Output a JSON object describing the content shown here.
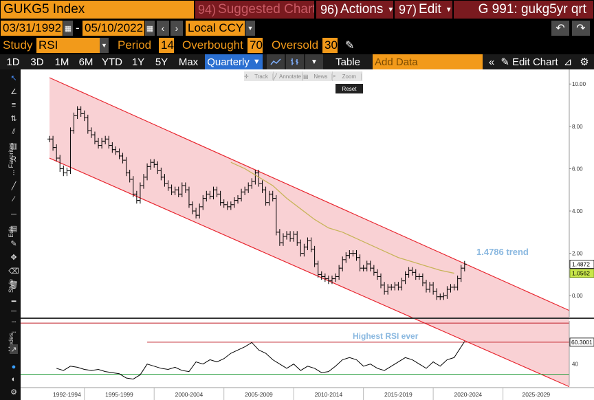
{
  "header": {
    "ticker": "GUKG5 Index",
    "suggested": {
      "num": "94)",
      "label": "Suggested Charts"
    },
    "actions": {
      "num": "96)",
      "label": "Actions"
    },
    "edit": {
      "num": "97)",
      "label": "Edit"
    },
    "title": "G 991: gukg5yr qrt"
  },
  "range": {
    "start": "03/31/1992",
    "sep": "-",
    "end": "05/10/2022",
    "currency": "Local CCY"
  },
  "study": {
    "label": "Study",
    "value": "RSI",
    "period_label": "Period",
    "period": "14",
    "overbought_label": "Overbought",
    "overbought": "70",
    "oversold_label": "Oversold",
    "oversold": "30"
  },
  "toolbar": {
    "periods": [
      "1D",
      "3D",
      "1M",
      "6M",
      "YTD",
      "1Y",
      "5Y",
      "Max"
    ],
    "frequency": "Quarterly",
    "table": "Table",
    "add_data_placeholder": "Add Data",
    "edit_chart": "Edit Chart"
  },
  "floating_toolbar": {
    "items": [
      "Track",
      "Annotate",
      "News",
      "Zoom"
    ],
    "reset": "Reset"
  },
  "left_toolbar": {
    "favorites": "Favorites",
    "edit": "Edit",
    "style": "Style",
    "modes": "Modes"
  },
  "colors": {
    "orange": "#f29a1a",
    "maroon": "#7a1a1f",
    "blue": "#2a6fd1",
    "channel": "#e8262f",
    "channel_fill": "#f7c6c9",
    "ma": "#c8b45a"
  },
  "chart_data": {
    "type": "line",
    "x_labels": [
      "1992-1994",
      "1995-1999",
      "2000-2004",
      "2005-2009",
      "2010-2014",
      "2015-2019",
      "2020-2024",
      "2025-2029"
    ],
    "price_axis": {
      "ticks": [
        "10.00",
        "8.00",
        "6.00",
        "4.00",
        "2.00",
        "0.00"
      ],
      "ylim": [
        -1.0,
        10.3
      ]
    },
    "price_series": [
      [
        1992.5,
        7.4
      ],
      [
        1992.75,
        7.0
      ],
      [
        1993.0,
        6.5
      ],
      [
        1993.25,
        6.0
      ],
      [
        1993.5,
        5.8
      ],
      [
        1993.75,
        5.9
      ],
      [
        1994.0,
        7.8
      ],
      [
        1994.25,
        8.5
      ],
      [
        1994.5,
        8.8
      ],
      [
        1994.75,
        8.6
      ],
      [
        1995.0,
        8.4
      ],
      [
        1995.25,
        7.8
      ],
      [
        1995.5,
        7.6
      ],
      [
        1995.75,
        7.3
      ],
      [
        1996.0,
        7.1
      ],
      [
        1996.25,
        7.3
      ],
      [
        1996.5,
        7.4
      ],
      [
        1996.75,
        7.1
      ],
      [
        1997.0,
        6.9
      ],
      [
        1997.25,
        6.8
      ],
      [
        1997.5,
        6.6
      ],
      [
        1997.75,
        6.4
      ],
      [
        1998.0,
        5.8
      ],
      [
        1998.25,
        5.5
      ],
      [
        1998.5,
        4.8
      ],
      [
        1998.75,
        4.5
      ],
      [
        1999.0,
        5.2
      ],
      [
        1999.25,
        5.6
      ],
      [
        1999.5,
        6.1
      ],
      [
        1999.75,
        6.3
      ],
      [
        2000.0,
        6.2
      ],
      [
        2000.25,
        5.9
      ],
      [
        2000.5,
        5.6
      ],
      [
        2000.75,
        5.3
      ],
      [
        2001.0,
        5.1
      ],
      [
        2001.25,
        4.9
      ],
      [
        2001.5,
        5.0
      ],
      [
        2001.75,
        4.8
      ],
      [
        2002.0,
        5.2
      ],
      [
        2002.25,
        5.0
      ],
      [
        2002.5,
        4.3
      ],
      [
        2002.75,
        4.0
      ],
      [
        2003.0,
        3.8
      ],
      [
        2003.25,
        4.2
      ],
      [
        2003.5,
        4.6
      ],
      [
        2003.75,
        4.8
      ],
      [
        2004.0,
        4.7
      ],
      [
        2004.25,
        5.0
      ],
      [
        2004.5,
        4.8
      ],
      [
        2004.75,
        4.4
      ],
      [
        2005.0,
        4.3
      ],
      [
        2005.25,
        4.2
      ],
      [
        2005.5,
        4.3
      ],
      [
        2005.75,
        4.5
      ],
      [
        2006.0,
        4.6
      ],
      [
        2006.25,
        4.9
      ],
      [
        2006.5,
        5.0
      ],
      [
        2006.75,
        5.2
      ],
      [
        2007.0,
        5.4
      ],
      [
        2007.25,
        5.8
      ],
      [
        2007.5,
        5.3
      ],
      [
        2007.75,
        5.0
      ],
      [
        2008.0,
        4.4
      ],
      [
        2008.25,
        4.8
      ],
      [
        2008.5,
        4.6
      ],
      [
        2008.75,
        3.0
      ],
      [
        2009.0,
        2.5
      ],
      [
        2009.25,
        2.8
      ],
      [
        2009.5,
        2.9
      ],
      [
        2009.75,
        2.7
      ],
      [
        2010.0,
        2.9
      ],
      [
        2010.25,
        2.5
      ],
      [
        2010.5,
        2.0
      ],
      [
        2010.75,
        2.3
      ],
      [
        2011.0,
        2.6
      ],
      [
        2011.25,
        2.2
      ],
      [
        2011.5,
        1.5
      ],
      [
        2011.75,
        1.0
      ],
      [
        2012.0,
        0.9
      ],
      [
        2012.25,
        0.8
      ],
      [
        2012.5,
        0.7
      ],
      [
        2012.75,
        0.8
      ],
      [
        2013.0,
        0.9
      ],
      [
        2013.25,
        1.3
      ],
      [
        2013.5,
        1.7
      ],
      [
        2013.75,
        1.9
      ],
      [
        2014.0,
        2.0
      ],
      [
        2014.25,
        2.0
      ],
      [
        2014.5,
        1.8
      ],
      [
        2014.75,
        1.3
      ],
      [
        2015.0,
        1.3
      ],
      [
        2015.25,
        1.5
      ],
      [
        2015.5,
        1.3
      ],
      [
        2015.75,
        1.1
      ],
      [
        2016.0,
        0.9
      ],
      [
        2016.25,
        0.5
      ],
      [
        2016.5,
        0.2
      ],
      [
        2016.75,
        0.4
      ],
      [
        2017.0,
        0.4
      ],
      [
        2017.25,
        0.5
      ],
      [
        2017.5,
        0.4
      ],
      [
        2017.75,
        0.7
      ],
      [
        2018.0,
        1.0
      ],
      [
        2018.25,
        1.2
      ],
      [
        2018.5,
        1.1
      ],
      [
        2018.75,
        0.9
      ],
      [
        2019.0,
        0.9
      ],
      [
        2019.25,
        0.6
      ],
      [
        2019.5,
        0.3
      ],
      [
        2019.75,
        0.5
      ],
      [
        2020.0,
        0.2
      ],
      [
        2020.25,
        -0.05
      ],
      [
        2020.5,
        -0.05
      ],
      [
        2020.75,
        0.0
      ],
      [
        2021.0,
        0.3
      ],
      [
        2021.25,
        0.4
      ],
      [
        2021.5,
        0.4
      ],
      [
        2021.75,
        0.8
      ],
      [
        2022.0,
        1.3
      ],
      [
        2022.25,
        1.49
      ]
    ],
    "moving_average": [
      [
        2005.5,
        6.3
      ],
      [
        2006.5,
        6.0
      ],
      [
        2007.5,
        5.6
      ],
      [
        2008.5,
        5.2
      ],
      [
        2009.5,
        4.6
      ],
      [
        2010.5,
        4.1
      ],
      [
        2011.5,
        3.6
      ],
      [
        2012.5,
        3.2
      ],
      [
        2013.5,
        3.0
      ],
      [
        2014.5,
        2.7
      ],
      [
        2015.5,
        2.4
      ],
      [
        2016.5,
        2.1
      ],
      [
        2017.5,
        1.8
      ],
      [
        2018.5,
        1.6
      ],
      [
        2019.5,
        1.4
      ],
      [
        2020.5,
        1.2
      ],
      [
        2021.5,
        1.06
      ]
    ],
    "channel": {
      "upper": [
        [
          1992.5,
          10.3
        ],
        [
          2029.75,
          -0.7
        ]
      ],
      "lower": [
        [
          1992.5,
          6.5
        ],
        [
          2029.75,
          -4.3
        ]
      ]
    },
    "last_price_tag": "1.4872",
    "ma_tag": "1.0562",
    "trend_annotation": "1.4786 trend",
    "rsi_axis": {
      "ticks": [
        "40"
      ],
      "ylim": [
        20,
        80
      ]
    },
    "rsi_series": [
      [
        1993.0,
        36
      ],
      [
        1993.5,
        34
      ],
      [
        1994.0,
        38
      ],
      [
        1994.5,
        37
      ],
      [
        1995.0,
        35
      ],
      [
        1995.5,
        34
      ],
      [
        1996.0,
        35
      ],
      [
        1996.5,
        33
      ],
      [
        1997.0,
        32
      ],
      [
        1997.5,
        31
      ],
      [
        1998.0,
        27
      ],
      [
        1998.5,
        26
      ],
      [
        1999.0,
        30
      ],
      [
        1999.5,
        40
      ],
      [
        2000.0,
        38
      ],
      [
        2000.5,
        36
      ],
      [
        2001.0,
        35
      ],
      [
        2001.5,
        37
      ],
      [
        2002.0,
        34
      ],
      [
        2002.5,
        33
      ],
      [
        2003.0,
        42
      ],
      [
        2003.5,
        40
      ],
      [
        2004.0,
        44
      ],
      [
        2004.5,
        42
      ],
      [
        2005.0,
        45
      ],
      [
        2005.5,
        50
      ],
      [
        2006.0,
        53
      ],
      [
        2006.5,
        56
      ],
      [
        2007.0,
        60
      ],
      [
        2007.5,
        53
      ],
      [
        2008.0,
        50
      ],
      [
        2008.5,
        44
      ],
      [
        2009.0,
        40
      ],
      [
        2009.5,
        36
      ],
      [
        2010.0,
        40
      ],
      [
        2010.5,
        34
      ],
      [
        2011.0,
        38
      ],
      [
        2011.5,
        36
      ],
      [
        2012.0,
        32
      ],
      [
        2012.5,
        33
      ],
      [
        2013.0,
        38
      ],
      [
        2013.5,
        44
      ],
      [
        2014.0,
        46
      ],
      [
        2014.5,
        44
      ],
      [
        2015.0,
        38
      ],
      [
        2015.5,
        40
      ],
      [
        2016.0,
        36
      ],
      [
        2016.5,
        34
      ],
      [
        2017.0,
        38
      ],
      [
        2017.5,
        42
      ],
      [
        2018.0,
        46
      ],
      [
        2018.5,
        44
      ],
      [
        2019.0,
        40
      ],
      [
        2019.5,
        36
      ],
      [
        2020.0,
        42
      ],
      [
        2020.5,
        38
      ],
      [
        2021.0,
        44
      ],
      [
        2021.5,
        46
      ],
      [
        2022.0,
        56
      ],
      [
        2022.25,
        61
      ]
    ],
    "rsi_levels": {
      "highest": 60.3001,
      "green": 30.5
    },
    "rsi_tag": "60.3001",
    "rsi_annotation": "Highest RSI ever"
  }
}
